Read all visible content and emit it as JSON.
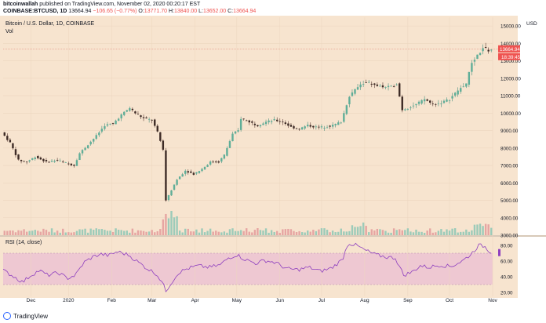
{
  "header": {
    "user": "bitcoinwallah",
    "published": " published on TradingView.com, November 02, 2020 00:20:17 EST",
    "symbol": "COINBASE:BTCUSD, 1D",
    "price": "13664.94",
    "change": "−106.65 (−0.77%)",
    "o_label": "O:",
    "o_value": "13771.70",
    "h_label": "H:",
    "h_value": "13840.00",
    "l_label": "L:",
    "l_value": "13652.00",
    "c_label": "C:",
    "c_value": "13664.94"
  },
  "chart_data": [
    {
      "type": "candlestick",
      "title": "Bitcoin / U.S. Dollar, 1D, COINBASE",
      "volume_label": "Vol",
      "currency": "USD",
      "ylim": [
        3000,
        15500
      ],
      "yticks": [
        3000,
        4000,
        5000,
        6000,
        7000,
        8000,
        9000,
        10000,
        11000,
        12000,
        13000,
        14000,
        15000
      ],
      "ytick_labels": [
        "3000.00",
        "4000.00",
        "5000.00",
        "6000.00",
        "7000.00",
        "8000.00",
        "9000.00",
        "10000.00",
        "11000.00",
        "12000.00",
        "13000.00",
        "14000.00",
        "15000.00"
      ],
      "last_price_label": "13664.94",
      "countdown_label": "18:39:45",
      "xticks": [
        "Dec",
        "2020",
        "Feb",
        "Mar",
        "Apr",
        "May",
        "Jun",
        "Jul",
        "Aug",
        "Sep",
        "Oct",
        "Nov"
      ],
      "date_range": [
        "2019-11-15",
        "2020-11-02"
      ],
      "price_path": [
        [
          0,
          8900
        ],
        [
          6,
          8300
        ],
        [
          12,
          7300
        ],
        [
          18,
          7200
        ],
        [
          24,
          7500
        ],
        [
          32,
          7200
        ],
        [
          40,
          7300
        ],
        [
          46,
          7150
        ],
        [
          52,
          7000
        ],
        [
          56,
          7700
        ],
        [
          62,
          8200
        ],
        [
          68,
          8700
        ],
        [
          74,
          9300
        ],
        [
          80,
          9400
        ],
        [
          86,
          9900
        ],
        [
          92,
          10300
        ],
        [
          96,
          10000
        ],
        [
          102,
          9700
        ],
        [
          108,
          9600
        ],
        [
          112,
          8900
        ],
        [
          116,
          7900
        ],
        [
          118,
          5000
        ],
        [
          120,
          5300
        ],
        [
          126,
          6200
        ],
        [
          132,
          6700
        ],
        [
          138,
          6500
        ],
        [
          144,
          6800
        ],
        [
          150,
          7200
        ],
        [
          156,
          7200
        ],
        [
          160,
          7600
        ],
        [
          166,
          8800
        ],
        [
          170,
          9000
        ],
        [
          172,
          9700
        ],
        [
          178,
          9500
        ],
        [
          184,
          9300
        ],
        [
          190,
          9500
        ],
        [
          196,
          9600
        ],
        [
          202,
          9500
        ],
        [
          208,
          9200
        ],
        [
          214,
          9100
        ],
        [
          220,
          9300
        ],
        [
          226,
          9200
        ],
        [
          232,
          9200
        ],
        [
          238,
          9300
        ],
        [
          244,
          9500
        ],
        [
          250,
          11000
        ],
        [
          256,
          11500
        ],
        [
          262,
          11800
        ],
        [
          268,
          11600
        ],
        [
          274,
          11500
        ],
        [
          280,
          11500
        ],
        [
          284,
          11700
        ],
        [
          288,
          10200
        ],
        [
          292,
          10300
        ],
        [
          298,
          10500
        ],
        [
          304,
          10800
        ],
        [
          310,
          10500
        ],
        [
          316,
          10600
        ],
        [
          322,
          10800
        ],
        [
          328,
          11300
        ],
        [
          334,
          11700
        ],
        [
          338,
          12900
        ],
        [
          342,
          13300
        ],
        [
          346,
          13750
        ],
        [
          350,
          13600
        ],
        [
          352,
          13665
        ]
      ]
    },
    {
      "type": "line",
      "title": "RSI (14, close)",
      "band": [
        30,
        70
      ],
      "ylim": [
        15,
        90
      ],
      "yticks": [
        20,
        40,
        60,
        80
      ],
      "ytick_labels": [
        "20.00",
        "40.00",
        "60.00",
        "80.00"
      ],
      "last_value": 70.8,
      "values_path": [
        [
          0,
          48
        ],
        [
          8,
          40
        ],
        [
          14,
          33
        ],
        [
          20,
          42
        ],
        [
          26,
          48
        ],
        [
          32,
          42
        ],
        [
          40,
          45
        ],
        [
          46,
          38
        ],
        [
          52,
          42
        ],
        [
          58,
          58
        ],
        [
          64,
          65
        ],
        [
          70,
          69
        ],
        [
          76,
          67
        ],
        [
          82,
          72
        ],
        [
          90,
          68
        ],
        [
          96,
          60
        ],
        [
          104,
          50
        ],
        [
          110,
          44
        ],
        [
          114,
          34
        ],
        [
          117,
          22
        ],
        [
          120,
          30
        ],
        [
          126,
          45
        ],
        [
          132,
          50
        ],
        [
          140,
          54
        ],
        [
          148,
          52
        ],
        [
          156,
          55
        ],
        [
          162,
          64
        ],
        [
          168,
          68
        ],
        [
          174,
          62
        ],
        [
          182,
          57
        ],
        [
          188,
          61
        ],
        [
          196,
          58
        ],
        [
          204,
          50
        ],
        [
          212,
          49
        ],
        [
          220,
          52
        ],
        [
          228,
          47
        ],
        [
          236,
          51
        ],
        [
          244,
          62
        ],
        [
          248,
          83
        ],
        [
          254,
          80
        ],
        [
          260,
          74
        ],
        [
          268,
          68
        ],
        [
          276,
          65
        ],
        [
          282,
          64
        ],
        [
          288,
          42
        ],
        [
          294,
          46
        ],
        [
          300,
          54
        ],
        [
          306,
          52
        ],
        [
          314,
          55
        ],
        [
          322,
          53
        ],
        [
          330,
          60
        ],
        [
          336,
          68
        ],
        [
          342,
          80
        ],
        [
          346,
          79
        ],
        [
          350,
          72
        ],
        [
          352,
          70.8
        ]
      ]
    }
  ],
  "footer": {
    "brand": "TradingView"
  }
}
